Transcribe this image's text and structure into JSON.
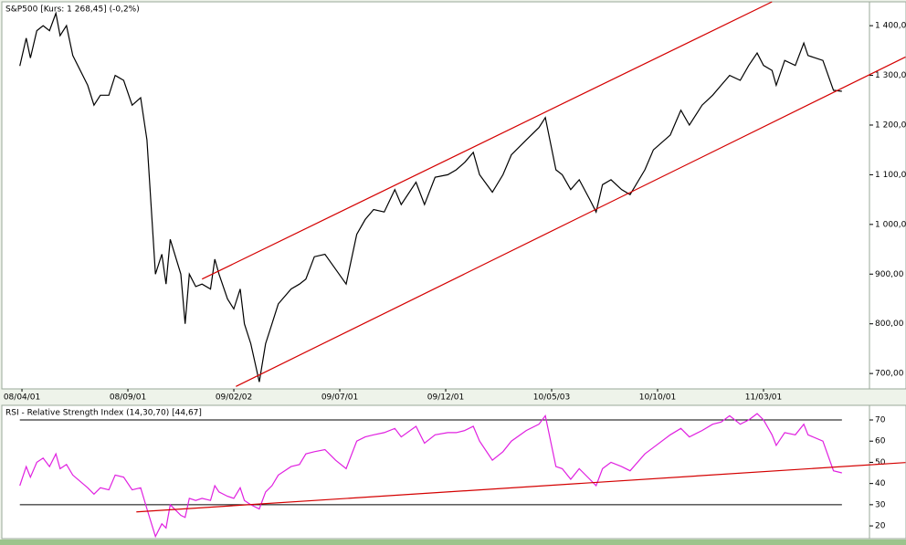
{
  "chart_data": [
    {
      "type": "line",
      "title": "S&P500 [Kurs: 1 268,45] (-0,2%)",
      "xlim": [
        -0.95,
        40
      ],
      "xticks": [
        {
          "value": 0,
          "label": "08/04/01"
        },
        {
          "value": 5,
          "label": "08/09/01"
        },
        {
          "value": 10,
          "label": "09/02/02"
        },
        {
          "value": 15,
          "label": "09/07/01"
        },
        {
          "value": 20,
          "label": "09/12/01"
        },
        {
          "value": 25,
          "label": "10/05/03"
        },
        {
          "value": 30,
          "label": "10/10/01"
        },
        {
          "value": 35,
          "label": "11/03/01"
        }
      ],
      "ylim": [
        669,
        1448
      ],
      "yticks": [
        {
          "value": 700,
          "label": "700,00"
        },
        {
          "value": 800,
          "label": "800,00"
        },
        {
          "value": 900,
          "label": "900,00"
        },
        {
          "value": 1000,
          "label": "1 000,00"
        },
        {
          "value": 1100,
          "label": "1 100,00"
        },
        {
          "value": 1200,
          "label": "1 200,00"
        },
        {
          "value": 1300,
          "label": "1 300,00"
        },
        {
          "value": 1400,
          "label": "1 400,00"
        }
      ],
      "x": [
        -0.1,
        0.2,
        0.4,
        0.7,
        1.0,
        1.3,
        1.6,
        1.8,
        2.1,
        2.4,
        3.1,
        3.4,
        3.7,
        4.1,
        4.4,
        4.8,
        5.2,
        5.6,
        5.9,
        6.3,
        6.6,
        6.8,
        7.0,
        7.5,
        7.7,
        7.9,
        8.2,
        8.5,
        8.9,
        9.1,
        9.3,
        9.7,
        10.0,
        10.3,
        10.5,
        10.8,
        11.2,
        11.5,
        11.8,
        12.1,
        12.7,
        13.1,
        13.4,
        13.8,
        14.3,
        14.8,
        15.3,
        15.8,
        16.2,
        16.6,
        17.1,
        17.6,
        17.9,
        18.6,
        19.0,
        19.5,
        20.1,
        20.5,
        20.9,
        21.3,
        21.6,
        22.2,
        22.7,
        23.1,
        23.8,
        24.4,
        24.7,
        25.2,
        25.5,
        25.9,
        26.3,
        26.8,
        27.1,
        27.4,
        27.8,
        28.3,
        28.7,
        29.4,
        29.8,
        30.6,
        31.1,
        31.5,
        32.1,
        32.6,
        33.0,
        33.4,
        33.9,
        34.3,
        34.7,
        35.0,
        35.4,
        35.6,
        36.0,
        36.5,
        36.9,
        37.1,
        37.8,
        38.3,
        38.7
      ],
      "series": [
        {
          "color": "#000000",
          "values": [
            1319,
            1375,
            1335,
            1390,
            1400,
            1390,
            1425,
            1380,
            1400,
            1340,
            1280,
            1240,
            1260,
            1260,
            1300,
            1290,
            1240,
            1255,
            1170,
            900,
            940,
            880,
            970,
            900,
            800,
            900,
            875,
            880,
            870,
            930,
            900,
            850,
            830,
            870,
            800,
            760,
            683,
            760,
            800,
            840,
            870,
            880,
            890,
            935,
            940,
            910,
            880,
            980,
            1010,
            1030,
            1025,
            1070,
            1040,
            1085,
            1040,
            1095,
            1100,
            1110,
            1125,
            1145,
            1100,
            1065,
            1100,
            1140,
            1170,
            1195,
            1215,
            1110,
            1100,
            1070,
            1090,
            1050,
            1025,
            1080,
            1090,
            1070,
            1060,
            1110,
            1150,
            1180,
            1230,
            1200,
            1240,
            1260,
            1280,
            1300,
            1290,
            1320,
            1345,
            1320,
            1310,
            1280,
            1330,
            1320,
            1365,
            1340,
            1330,
            1270,
            1268
          ]
        }
      ],
      "trendlines": [
        {
          "color": "#d40000",
          "x": [
            8.5,
            35.4
          ],
          "values": [
            890,
            1448
          ]
        },
        {
          "color": "#d40000",
          "x": [
            10.1,
            41.7
          ],
          "values": [
            674,
            1337
          ]
        }
      ]
    },
    {
      "type": "line",
      "title": "RSI - Relative Strength Index (14,30,70) [44,67]",
      "xlim": [
        -0.95,
        40
      ],
      "ylim": [
        14,
        76.9
      ],
      "yticks": [
        20,
        30,
        40,
        50,
        60,
        70
      ],
      "reference_lines": [
        30,
        70
      ],
      "x": [
        -0.1,
        0.2,
        0.4,
        0.7,
        1.0,
        1.3,
        1.6,
        1.8,
        2.1,
        2.4,
        3.1,
        3.4,
        3.7,
        4.1,
        4.4,
        4.8,
        5.2,
        5.6,
        5.9,
        6.3,
        6.6,
        6.8,
        7.0,
        7.5,
        7.7,
        7.9,
        8.2,
        8.5,
        8.9,
        9.1,
        9.3,
        9.7,
        10.0,
        10.3,
        10.5,
        10.8,
        11.2,
        11.5,
        11.8,
        12.1,
        12.7,
        13.1,
        13.4,
        13.8,
        14.3,
        14.8,
        15.3,
        15.8,
        16.2,
        16.6,
        17.1,
        17.6,
        17.9,
        18.6,
        19.0,
        19.5,
        20.1,
        20.5,
        20.9,
        21.3,
        21.6,
        22.2,
        22.7,
        23.1,
        23.8,
        24.4,
        24.7,
        25.2,
        25.5,
        25.9,
        26.3,
        26.8,
        27.1,
        27.4,
        27.8,
        28.3,
        28.7,
        29.4,
        29.8,
        30.6,
        31.1,
        31.5,
        32.1,
        32.6,
        33.0,
        33.4,
        33.9,
        34.3,
        34.7,
        35.0,
        35.4,
        35.6,
        36.0,
        36.5,
        36.9,
        37.1,
        37.8,
        38.3,
        38.7
      ],
      "series": [
        {
          "color": "#e020e0",
          "values": [
            39,
            48,
            43,
            50,
            52,
            48,
            54,
            47,
            49,
            44,
            38,
            35,
            38,
            37,
            44,
            43,
            37,
            38,
            28,
            15,
            21,
            19,
            30,
            25,
            24,
            33,
            32,
            33,
            32,
            39,
            36,
            34,
            33,
            38,
            32,
            30,
            28,
            36,
            39,
            44,
            48,
            49,
            54,
            55,
            56,
            51,
            47,
            60,
            62,
            63,
            64,
            66,
            62,
            67,
            59,
            63,
            64,
            64,
            65,
            67,
            60,
            51,
            55,
            60,
            65,
            68,
            72,
            48,
            47,
            42,
            47,
            42,
            39,
            47,
            50,
            48,
            46,
            54,
            57,
            63,
            66,
            62,
            65,
            68,
            69,
            72,
            68,
            70,
            73,
            70,
            63,
            58,
            64,
            63,
            68,
            63,
            60,
            46,
            45
          ]
        }
      ],
      "trendlines": [
        {
          "color": "#d40000",
          "x": [
            5.4,
            41.7
          ],
          "values": [
            26.6,
            49.9
          ]
        }
      ]
    }
  ]
}
